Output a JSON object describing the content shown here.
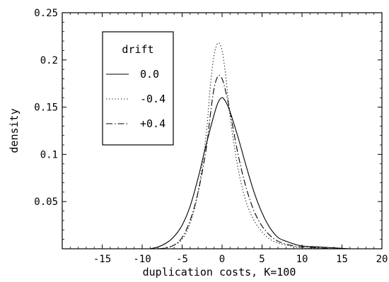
{
  "chart_data": {
    "type": "line",
    "title": "",
    "xlabel": "duplication costs, K=100",
    "ylabel": "density",
    "xlim": [
      -20,
      20
    ],
    "ylim": [
      0,
      0.25
    ],
    "x_ticks": [
      -15,
      -10,
      -5,
      0,
      5,
      10,
      15,
      20
    ],
    "y_ticks": [
      0.05,
      0.1,
      0.15,
      0.2,
      0.25
    ],
    "x_tick_labels": [
      "-15",
      "-10",
      "-5",
      "0",
      "5",
      "10",
      "15",
      "20"
    ],
    "y_tick_labels": [
      "0.05",
      "0.1",
      "0.15",
      "0.2",
      "0.25"
    ],
    "grid": false,
    "legend": {
      "title": "drift",
      "placement": "top-left"
    },
    "series": [
      {
        "name": "0.0",
        "style": "solid",
        "x": [
          -9,
          -8,
          -7,
          -6,
          -5,
          -4,
          -3,
          -2,
          -1,
          -0.5,
          0,
          0.5,
          1,
          2,
          3,
          4,
          5,
          6,
          7,
          8,
          9,
          10,
          12,
          14,
          16
        ],
        "y": [
          0,
          0.002,
          0.006,
          0.013,
          0.025,
          0.045,
          0.075,
          0.11,
          0.142,
          0.155,
          0.16,
          0.155,
          0.145,
          0.118,
          0.088,
          0.06,
          0.038,
          0.022,
          0.012,
          0.008,
          0.005,
          0.003,
          0.002,
          0.001,
          0
        ]
      },
      {
        "name": "-0.4",
        "style": "dotted",
        "x": [
          -8,
          -7,
          -6,
          -5,
          -4,
          -3,
          -2,
          -1.5,
          -1,
          -0.5,
          0,
          0.5,
          1,
          2,
          3,
          4,
          5,
          6,
          7,
          8,
          9,
          10,
          12,
          14
        ],
        "y": [
          0,
          0.001,
          0.004,
          0.01,
          0.027,
          0.06,
          0.12,
          0.17,
          0.205,
          0.218,
          0.21,
          0.18,
          0.14,
          0.085,
          0.05,
          0.03,
          0.018,
          0.01,
          0.006,
          0.004,
          0.002,
          0.001,
          0.0005,
          0
        ]
      },
      {
        "name": "+0.4",
        "style": "dash-dot",
        "x": [
          -8,
          -7,
          -6,
          -5,
          -4,
          -3,
          -2,
          -1.5,
          -1,
          -0.5,
          0,
          0.5,
          1,
          2,
          3,
          4,
          5,
          6,
          7,
          8,
          9,
          10,
          12,
          14
        ],
        "y": [
          0,
          0.001,
          0.004,
          0.012,
          0.03,
          0.06,
          0.105,
          0.14,
          0.17,
          0.183,
          0.18,
          0.165,
          0.145,
          0.1,
          0.065,
          0.04,
          0.024,
          0.014,
          0.008,
          0.005,
          0.003,
          0.002,
          0.001,
          0
        ]
      }
    ]
  }
}
